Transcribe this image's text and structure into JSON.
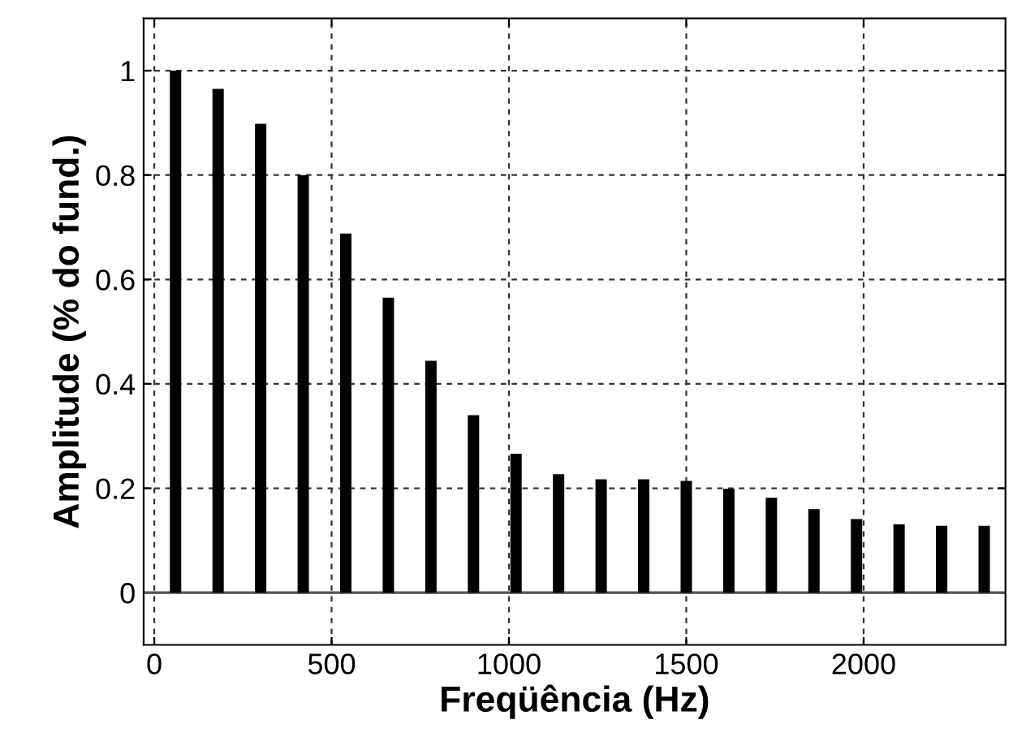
{
  "chart_data": {
    "type": "bar",
    "xlabel": "Freqüência (Hz)",
    "ylabel": "Amplitude (% do fund.)",
    "x": [
      60,
      180,
      300,
      420,
      540,
      660,
      780,
      900,
      1020,
      1140,
      1260,
      1380,
      1500,
      1620,
      1740,
      1860,
      1980,
      2100,
      2220,
      2340
    ],
    "values": [
      1.0,
      0.965,
      0.898,
      0.8,
      0.688,
      0.565,
      0.444,
      0.34,
      0.266,
      0.227,
      0.217,
      0.217,
      0.214,
      0.199,
      0.182,
      0.16,
      0.141,
      0.131,
      0.128,
      0.128
    ],
    "color": "#000000",
    "xlim": [
      -30,
      2400
    ],
    "xticks": [
      0,
      500,
      1000,
      1500,
      2000
    ],
    "ylim": [
      -0.1,
      1.1
    ],
    "yticks": [
      0,
      0.2,
      0.4,
      0.6,
      0.8,
      1
    ],
    "grid": true,
    "ref_lines": [
      {
        "axis": "y",
        "value": 0,
        "color": "#555555",
        "line_style": "solid"
      }
    ]
  }
}
